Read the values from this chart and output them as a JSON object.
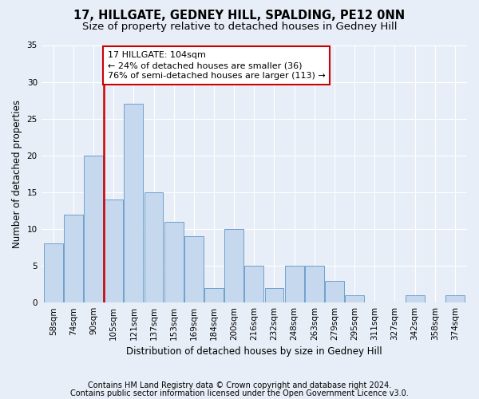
{
  "title": "17, HILLGATE, GEDNEY HILL, SPALDING, PE12 0NN",
  "subtitle": "Size of property relative to detached houses in Gedney Hill",
  "xlabel": "Distribution of detached houses by size in Gedney Hill",
  "ylabel": "Number of detached properties",
  "footnote1": "Contains HM Land Registry data © Crown copyright and database right 2024.",
  "footnote2": "Contains public sector information licensed under the Open Government Licence v3.0.",
  "categories": [
    "58sqm",
    "74sqm",
    "90sqm",
    "105sqm",
    "121sqm",
    "137sqm",
    "153sqm",
    "169sqm",
    "184sqm",
    "200sqm",
    "216sqm",
    "232sqm",
    "248sqm",
    "263sqm",
    "279sqm",
    "295sqm",
    "311sqm",
    "327sqm",
    "342sqm",
    "358sqm",
    "374sqm"
  ],
  "values": [
    8,
    12,
    20,
    14,
    27,
    15,
    11,
    9,
    2,
    10,
    5,
    2,
    5,
    5,
    3,
    1,
    0,
    0,
    1,
    0,
    1
  ],
  "bar_color": "#c5d8ed",
  "bar_edge_color": "#6fa0cc",
  "highlight_color": "#cc0000",
  "highlight_index": 3,
  "annotation_line1": "17 HILLGATE: 104sqm",
  "annotation_line2": "← 24% of detached houses are smaller (36)",
  "annotation_line3": "76% of semi-detached houses are larger (113) →",
  "annotation_box_color": "#ffffff",
  "annotation_box_edge": "#cc0000",
  "ylim": [
    0,
    35
  ],
  "yticks": [
    0,
    5,
    10,
    15,
    20,
    25,
    30,
    35
  ],
  "background_color": "#e8eef7",
  "grid_color": "#ffffff",
  "title_fontsize": 10.5,
  "subtitle_fontsize": 9.5,
  "axis_label_fontsize": 8.5,
  "tick_fontsize": 7.5,
  "annotation_fontsize": 8,
  "footnote_fontsize": 7
}
